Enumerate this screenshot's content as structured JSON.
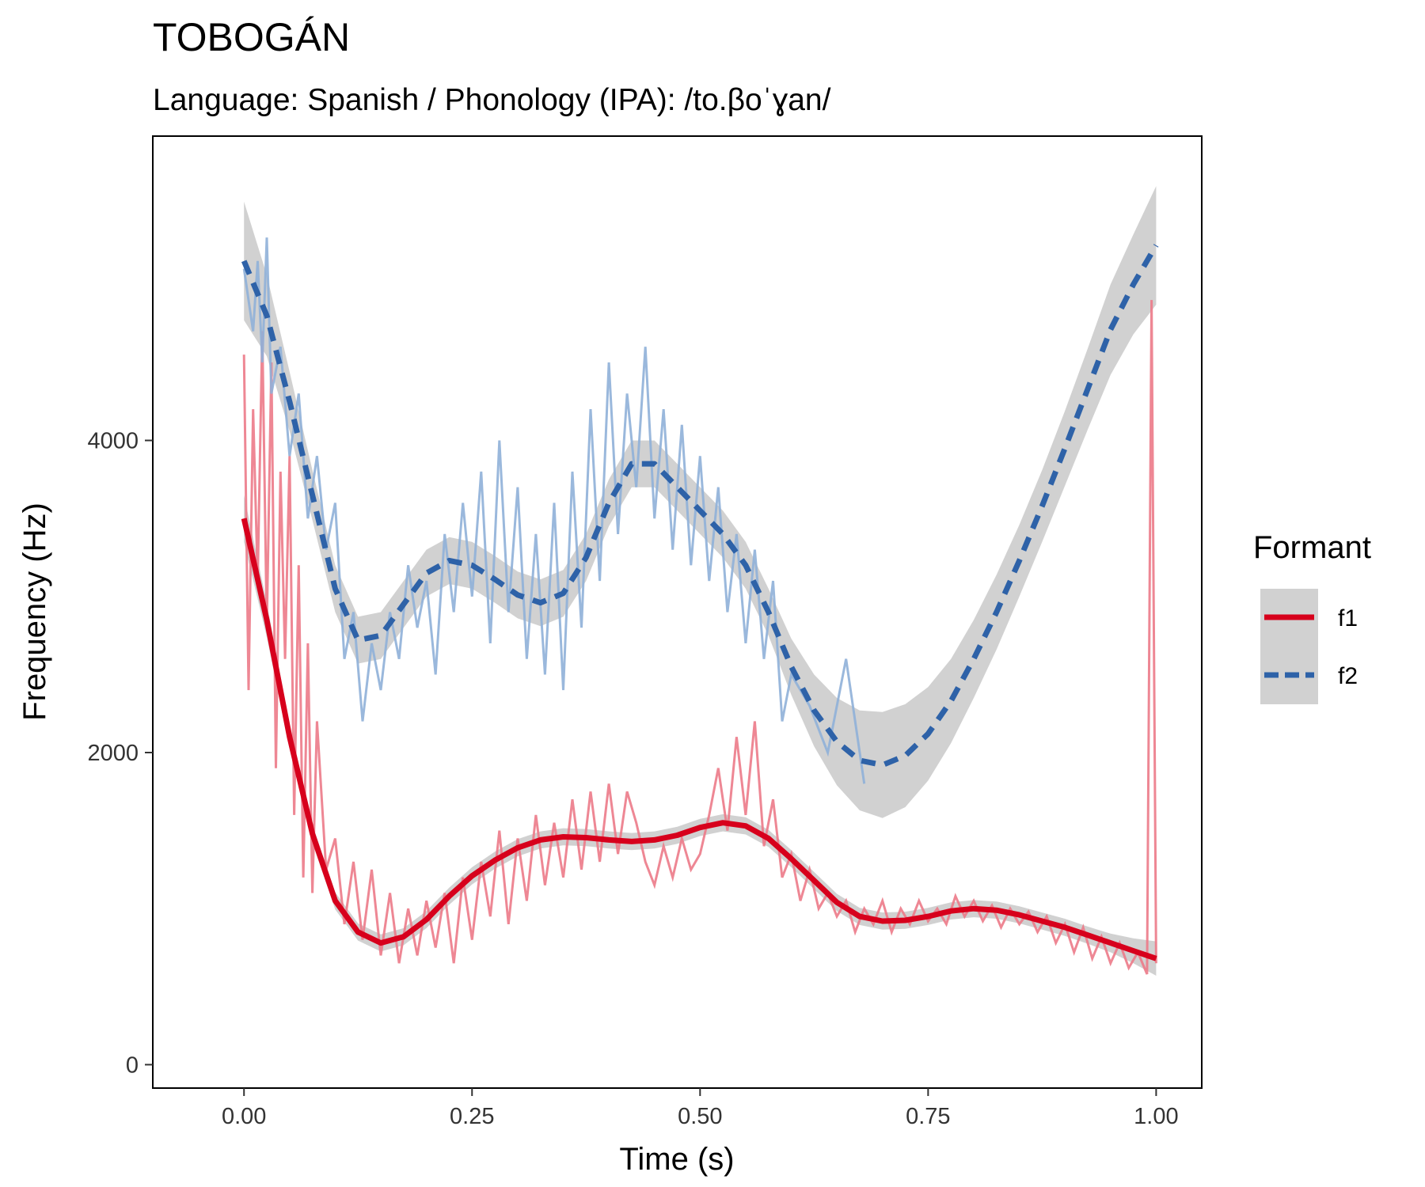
{
  "chart_data": {
    "type": "line",
    "title": "TOBOGÁN",
    "subtitle": "Language: Spanish / Phonology (IPA): /to.βoˈɣan/",
    "xlabel": "Time (s)",
    "ylabel": "Frequency (Hz)",
    "xlim": [
      -0.1,
      1.05
    ],
    "ylim": [
      -150,
      5950
    ],
    "x_ticks": [
      0.0,
      0.25,
      0.5,
      0.75,
      1.0
    ],
    "x_tick_labels": [
      "0.00",
      "0.25",
      "0.50",
      "0.75",
      "1.00"
    ],
    "y_ticks": [
      0,
      2000,
      4000
    ],
    "y_tick_labels": [
      "0",
      "2000",
      "4000"
    ],
    "grid": false,
    "legend": {
      "title": "Formant",
      "position": "right",
      "entries": [
        {
          "label": "f1",
          "color": "#d7001c",
          "linestyle": "solid"
        },
        {
          "label": "f2",
          "color": "#2e62a8",
          "linestyle": "dashed"
        }
      ]
    },
    "series": [
      {
        "name": "f1",
        "color": "#d7001c",
        "raw_color": "#ec7a88",
        "raw_points": [
          [
            0.0,
            4550
          ],
          [
            0.005,
            2400
          ],
          [
            0.01,
            4200
          ],
          [
            0.015,
            3100
          ],
          [
            0.02,
            4700
          ],
          [
            0.025,
            2800
          ],
          [
            0.03,
            4500
          ],
          [
            0.035,
            1900
          ],
          [
            0.04,
            3800
          ],
          [
            0.045,
            2600
          ],
          [
            0.05,
            3900
          ],
          [
            0.055,
            1600
          ],
          [
            0.06,
            3200
          ],
          [
            0.065,
            1200
          ],
          [
            0.07,
            2700
          ],
          [
            0.075,
            1100
          ],
          [
            0.08,
            2200
          ],
          [
            0.09,
            1250
          ],
          [
            0.1,
            1450
          ],
          [
            0.11,
            900
          ],
          [
            0.12,
            1300
          ],
          [
            0.13,
            800
          ],
          [
            0.14,
            1250
          ],
          [
            0.15,
            700
          ],
          [
            0.16,
            1100
          ],
          [
            0.17,
            650
          ],
          [
            0.18,
            1000
          ],
          [
            0.19,
            700
          ],
          [
            0.2,
            1050
          ],
          [
            0.21,
            750
          ],
          [
            0.22,
            1100
          ],
          [
            0.23,
            650
          ],
          [
            0.24,
            1200
          ],
          [
            0.25,
            800
          ],
          [
            0.26,
            1300
          ],
          [
            0.27,
            950
          ],
          [
            0.28,
            1500
          ],
          [
            0.29,
            900
          ],
          [
            0.3,
            1450
          ],
          [
            0.31,
            1050
          ],
          [
            0.32,
            1600
          ],
          [
            0.33,
            1150
          ],
          [
            0.34,
            1550
          ],
          [
            0.35,
            1200
          ],
          [
            0.36,
            1700
          ],
          [
            0.37,
            1250
          ],
          [
            0.38,
            1750
          ],
          [
            0.39,
            1300
          ],
          [
            0.4,
            1800
          ],
          [
            0.41,
            1350
          ],
          [
            0.42,
            1750
          ],
          [
            0.43,
            1550
          ],
          [
            0.44,
            1300
          ],
          [
            0.45,
            1150
          ],
          [
            0.46,
            1400
          ],
          [
            0.47,
            1200
          ],
          [
            0.48,
            1450
          ],
          [
            0.49,
            1250
          ],
          [
            0.5,
            1350
          ],
          [
            0.51,
            1600
          ],
          [
            0.52,
            1900
          ],
          [
            0.53,
            1500
          ],
          [
            0.54,
            2100
          ],
          [
            0.55,
            1600
          ],
          [
            0.56,
            2200
          ],
          [
            0.57,
            1400
          ],
          [
            0.58,
            1700
          ],
          [
            0.59,
            1200
          ],
          [
            0.6,
            1350
          ],
          [
            0.61,
            1050
          ],
          [
            0.62,
            1250
          ],
          [
            0.63,
            1000
          ],
          [
            0.64,
            1100
          ],
          [
            0.65,
            950
          ],
          [
            0.66,
            1050
          ],
          [
            0.67,
            850
          ],
          [
            0.68,
            1000
          ],
          [
            0.69,
            900
          ],
          [
            0.7,
            1050
          ],
          [
            0.71,
            850
          ],
          [
            0.72,
            1000
          ],
          [
            0.73,
            900
          ],
          [
            0.74,
            1050
          ],
          [
            0.75,
            920
          ],
          [
            0.76,
            1000
          ],
          [
            0.77,
            900
          ],
          [
            0.78,
            1080
          ],
          [
            0.79,
            950
          ],
          [
            0.8,
            1050
          ],
          [
            0.81,
            920
          ],
          [
            0.82,
            1020
          ],
          [
            0.83,
            880
          ],
          [
            0.84,
            1000
          ],
          [
            0.85,
            900
          ],
          [
            0.86,
            980
          ],
          [
            0.87,
            850
          ],
          [
            0.88,
            950
          ],
          [
            0.89,
            780
          ],
          [
            0.9,
            900
          ],
          [
            0.91,
            720
          ],
          [
            0.92,
            880
          ],
          [
            0.93,
            680
          ],
          [
            0.94,
            820
          ],
          [
            0.95,
            650
          ],
          [
            0.96,
            780
          ],
          [
            0.97,
            620
          ],
          [
            0.98,
            720
          ],
          [
            0.99,
            580
          ],
          [
            0.995,
            4900
          ],
          [
            1.0,
            650
          ]
        ],
        "smooth_points": [
          [
            0.0,
            3500
          ],
          [
            0.025,
            2850
          ],
          [
            0.05,
            2100
          ],
          [
            0.075,
            1480
          ],
          [
            0.1,
            1050
          ],
          [
            0.125,
            850
          ],
          [
            0.15,
            780
          ],
          [
            0.175,
            820
          ],
          [
            0.2,
            930
          ],
          [
            0.225,
            1080
          ],
          [
            0.25,
            1210
          ],
          [
            0.275,
            1310
          ],
          [
            0.3,
            1390
          ],
          [
            0.325,
            1440
          ],
          [
            0.35,
            1460
          ],
          [
            0.375,
            1455
          ],
          [
            0.4,
            1440
          ],
          [
            0.425,
            1430
          ],
          [
            0.45,
            1440
          ],
          [
            0.475,
            1470
          ],
          [
            0.5,
            1520
          ],
          [
            0.525,
            1550
          ],
          [
            0.55,
            1530
          ],
          [
            0.575,
            1450
          ],
          [
            0.6,
            1320
          ],
          [
            0.625,
            1180
          ],
          [
            0.65,
            1040
          ],
          [
            0.675,
            950
          ],
          [
            0.7,
            920
          ],
          [
            0.725,
            925
          ],
          [
            0.75,
            950
          ],
          [
            0.775,
            985
          ],
          [
            0.8,
            1000
          ],
          [
            0.825,
            990
          ],
          [
            0.85,
            960
          ],
          [
            0.875,
            920
          ],
          [
            0.9,
            880
          ],
          [
            0.925,
            830
          ],
          [
            0.95,
            780
          ],
          [
            0.975,
            730
          ],
          [
            1.0,
            680
          ]
        ],
        "band_halfwidth": [
          150,
          110,
          80,
          60,
          55,
          55,
          55,
          55,
          55,
          55,
          55,
          55,
          55,
          55,
          55,
          55,
          55,
          55,
          55,
          55,
          55,
          55,
          55,
          55,
          55,
          55,
          55,
          55,
          55,
          55,
          55,
          55,
          55,
          55,
          55,
          55,
          55,
          55,
          60,
          80,
          110
        ]
      },
      {
        "name": "f2",
        "color": "#2e62a8",
        "raw_color": "#8fb0d8",
        "raw_points": [
          [
            0.0,
            5100
          ],
          [
            0.01,
            4700
          ],
          [
            0.015,
            5150
          ],
          [
            0.02,
            4500
          ],
          [
            0.025,
            5300
          ],
          [
            0.03,
            4300
          ],
          [
            0.04,
            4600
          ],
          [
            0.05,
            3900
          ],
          [
            0.06,
            4300
          ],
          [
            0.07,
            3500
          ],
          [
            0.08,
            3900
          ],
          [
            0.09,
            3300
          ],
          [
            0.1,
            3600
          ],
          [
            0.11,
            2600
          ],
          [
            0.12,
            2900
          ],
          [
            0.13,
            2200
          ],
          [
            0.14,
            2700
          ],
          [
            0.15,
            2400
          ],
          [
            0.16,
            2900
          ],
          [
            0.17,
            2600
          ],
          [
            0.18,
            3200
          ],
          [
            0.19,
            2800
          ],
          [
            0.2,
            3100
          ],
          [
            0.21,
            2500
          ],
          [
            0.22,
            3400
          ],
          [
            0.23,
            2900
          ],
          [
            0.24,
            3600
          ],
          [
            0.25,
            3000
          ],
          [
            0.26,
            3800
          ],
          [
            0.27,
            2700
          ],
          [
            0.28,
            4000
          ],
          [
            0.29,
            2900
          ],
          [
            0.3,
            3700
          ],
          [
            0.31,
            2600
          ],
          [
            0.32,
            3400
          ],
          [
            0.33,
            2500
          ],
          [
            0.34,
            3600
          ],
          [
            0.35,
            2400
          ],
          [
            0.36,
            3800
          ],
          [
            0.37,
            2800
          ],
          [
            0.38,
            4200
          ],
          [
            0.39,
            3100
          ],
          [
            0.4,
            4500
          ],
          [
            0.41,
            3400
          ],
          [
            0.42,
            4300
          ],
          [
            0.43,
            3700
          ],
          [
            0.44,
            4600
          ],
          [
            0.45,
            3500
          ],
          [
            0.46,
            4200
          ],
          [
            0.47,
            3300
          ],
          [
            0.48,
            4100
          ],
          [
            0.49,
            3200
          ],
          [
            0.5,
            3900
          ],
          [
            0.51,
            3100
          ],
          [
            0.52,
            3700
          ],
          [
            0.53,
            2900
          ],
          [
            0.54,
            3400
          ],
          [
            0.55,
            2700
          ],
          [
            0.56,
            3300
          ],
          [
            0.57,
            2600
          ],
          [
            0.58,
            3100
          ],
          [
            0.59,
            2200
          ],
          [
            0.6,
            2500
          ],
          [
            0.62,
            2300
          ],
          [
            0.64,
            2000
          ],
          [
            0.66,
            2600
          ],
          [
            0.68,
            1800
          ]
        ],
        "smooth_points": [
          [
            0.0,
            5150
          ],
          [
            0.025,
            4800
          ],
          [
            0.05,
            4250
          ],
          [
            0.075,
            3650
          ],
          [
            0.1,
            3050
          ],
          [
            0.125,
            2720
          ],
          [
            0.15,
            2750
          ],
          [
            0.175,
            2950
          ],
          [
            0.2,
            3150
          ],
          [
            0.225,
            3230
          ],
          [
            0.25,
            3200
          ],
          [
            0.275,
            3110
          ],
          [
            0.3,
            3010
          ],
          [
            0.325,
            2960
          ],
          [
            0.35,
            3020
          ],
          [
            0.375,
            3250
          ],
          [
            0.4,
            3600
          ],
          [
            0.425,
            3850
          ],
          [
            0.45,
            3850
          ],
          [
            0.475,
            3700
          ],
          [
            0.5,
            3550
          ],
          [
            0.525,
            3400
          ],
          [
            0.55,
            3200
          ],
          [
            0.575,
            2900
          ],
          [
            0.6,
            2550
          ],
          [
            0.625,
            2270
          ],
          [
            0.65,
            2070
          ],
          [
            0.675,
            1950
          ],
          [
            0.7,
            1920
          ],
          [
            0.725,
            1980
          ],
          [
            0.75,
            2120
          ],
          [
            0.775,
            2330
          ],
          [
            0.8,
            2600
          ],
          [
            0.825,
            2900
          ],
          [
            0.85,
            3230
          ],
          [
            0.875,
            3580
          ],
          [
            0.9,
            3950
          ],
          [
            0.925,
            4330
          ],
          [
            0.95,
            4710
          ],
          [
            0.975,
            5000
          ],
          [
            1.0,
            5250
          ]
        ],
        "band_halfwidth": [
          380,
          260,
          190,
          160,
          150,
          150,
          150,
          150,
          150,
          150,
          150,
          150,
          150,
          150,
          150,
          150,
          150,
          150,
          150,
          150,
          150,
          150,
          150,
          150,
          180,
          230,
          280,
          320,
          340,
          330,
          300,
          270,
          250,
          240,
          230,
          230,
          240,
          260,
          290,
          320,
          380
        ]
      }
    ]
  }
}
